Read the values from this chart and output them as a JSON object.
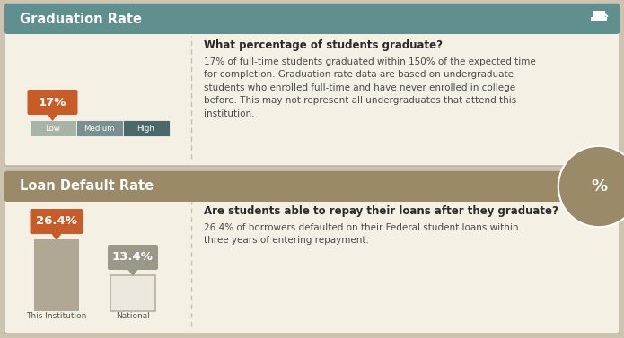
{
  "panel1_title": "Graduation Rate",
  "panel1_header_color": "#5f8f8f",
  "panel1_bg_color": "#f5f0e4",
  "panel1_value": "17%",
  "panel1_value_color": "#c85c28",
  "panel1_bar_segments": [
    "Low",
    "Medium",
    "High"
  ],
  "panel1_bar_colors": [
    "#a8b4a8",
    "#7a9090",
    "#4a6868"
  ],
  "panel1_question": "What percentage of students graduate?",
  "panel1_body": "17% of full-time students graduated within 150% of the expected time\nfor completion. Graduation rate data are based on undergraduate\nstudents who enrolled full-time and have never enrolled in college\nbefore. This may not represent all undergraduates that attend this\ninstitution.",
  "panel2_title": "Loan Default Rate",
  "panel2_header_color": "#9a8a68",
  "panel2_bg_color": "#f5f0e4",
  "panel2_institution_value": "26.4%",
  "panel2_national_value": "13.4%",
  "panel2_bubble_color_institution": "#c85c28",
  "panel2_bubble_color_national": "#9a9888",
  "panel2_bar_color_institution": "#b0a894",
  "panel2_bar_color_national": "#ece8de",
  "panel2_bar_border_national": "#b8b0a0",
  "panel2_label_institution": "This Institution",
  "panel2_label_national": "National",
  "panel2_question": "Are students able to repay their loans after they graduate?",
  "panel2_body": "26.4% of borrowers defaulted on their Federal student loans within\nthree years of entering repayment.",
  "outer_bg": "#ccc4b0",
  "border_color": "#b8b0a0",
  "divider_color": "#c8c0b0",
  "title_fontsize": 10.5,
  "question_fontsize": 8.5,
  "body_fontsize": 7.5,
  "value_fontsize": 9.5,
  "label_fontsize": 6.5
}
